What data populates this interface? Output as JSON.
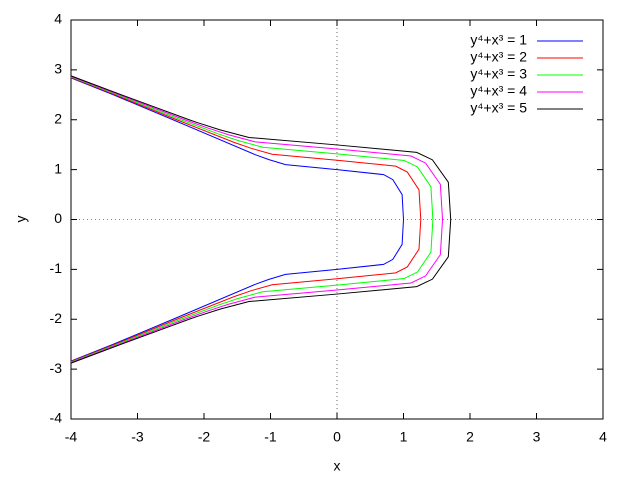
{
  "chart_data": {
    "type": "line",
    "xlabel": "x",
    "ylabel": "y",
    "xlim": [
      -4,
      4
    ],
    "ylim": [
      -4,
      4
    ],
    "xticks": [
      -4,
      -3,
      -2,
      -1,
      0,
      1,
      2,
      3,
      4
    ],
    "yticks": [
      -4,
      -3,
      -2,
      -1,
      0,
      1,
      2,
      3,
      4
    ],
    "zeroaxis": true,
    "legend": "top-right",
    "series": [
      {
        "name": "y⁴+x³ = 1",
        "color": "#0000ff",
        "x": [
          -4,
          -3.363,
          -2.466,
          -1.229,
          -1.024,
          -0.774,
          0,
          0.701,
          0.839,
          0.979,
          1,
          0.979,
          0.839,
          0.701,
          0,
          -0.774,
          -1.024,
          -1.229,
          -2.466,
          -3.363,
          -4
        ],
        "values": [
          2.84,
          2.5,
          2,
          1.3,
          1.2,
          1.1,
          1,
          0.9,
          0.8,
          0.5,
          0,
          -0.5,
          -0.8,
          -0.9,
          -1,
          -1.1,
          -1.2,
          -1.3,
          -2,
          -2.5,
          -2.84
        ]
      },
      {
        "name": "y⁴+x³ = 2",
        "color": "#ff0000",
        "x": [
          -4,
          -3.334,
          -2.41,
          -1.548,
          -1.29,
          -0.975,
          0,
          0.883,
          1.057,
          1.233,
          1.26,
          1.233,
          1.057,
          0.883,
          0,
          -0.975,
          -1.29,
          -1.548,
          -2.41,
          -3.334,
          -4
        ],
        "values": [
          2.85,
          2.5,
          2,
          1.546,
          1.427,
          1.308,
          1.189,
          1.07,
          0.951,
          0.595,
          0,
          -0.595,
          -0.951,
          -1.07,
          -1.189,
          -1.308,
          -1.427,
          -1.546,
          -2,
          -2.5,
          -2.85
        ]
      },
      {
        "name": "y⁴+x³ = 3",
        "color": "#00ff00",
        "x": [
          -4,
          -3.304,
          -2.351,
          -1.772,
          -1.477,
          -1.116,
          0,
          1.011,
          1.21,
          1.412,
          1.442,
          1.412,
          1.21,
          1.011,
          0,
          -1.116,
          -1.477,
          -1.772,
          -2.351,
          -3.304,
          -4
        ],
        "values": [
          2.86,
          2.5,
          2,
          1.711,
          1.579,
          1.448,
          1.316,
          1.184,
          1.053,
          0.658,
          0,
          -0.658,
          -1.053,
          -1.184,
          -1.316,
          -1.448,
          -1.579,
          -1.711,
          -2,
          -2.5,
          -2.86
        ]
      },
      {
        "name": "y⁴+x³ = 4",
        "color": "#ff00ff",
        "x": [
          -4,
          -3.273,
          -2.289,
          -1.951,
          -1.625,
          -1.229,
          0,
          1.113,
          1.332,
          1.554,
          1.587,
          1.554,
          1.332,
          1.113,
          0,
          -1.229,
          -1.625,
          -1.951,
          -2.289,
          -3.273,
          -4
        ],
        "values": [
          2.87,
          2.5,
          2,
          1.838,
          1.697,
          1.556,
          1.414,
          1.273,
          1.131,
          0.707,
          0,
          -0.707,
          -1.131,
          -1.273,
          -1.414,
          -1.556,
          -1.697,
          -1.838,
          -2,
          -2.5,
          -2.87
        ]
      },
      {
        "name": "y⁴+x³ = 5",
        "color": "#000000",
        "x": [
          -4,
          -3.242,
          -2.224,
          -2.102,
          -1.751,
          -1.324,
          0,
          1.199,
          1.435,
          1.674,
          1.71,
          1.674,
          1.435,
          1.199,
          0,
          -1.324,
          -1.751,
          -2.102,
          -2.224,
          -3.242,
          -4
        ],
        "values": [
          2.88,
          2.5,
          2,
          1.944,
          1.794,
          1.645,
          1.495,
          1.346,
          1.196,
          0.748,
          0,
          -0.748,
          -1.196,
          -1.346,
          -1.495,
          -1.645,
          -1.794,
          -1.944,
          -2,
          -2.5,
          -2.88
        ]
      }
    ]
  }
}
